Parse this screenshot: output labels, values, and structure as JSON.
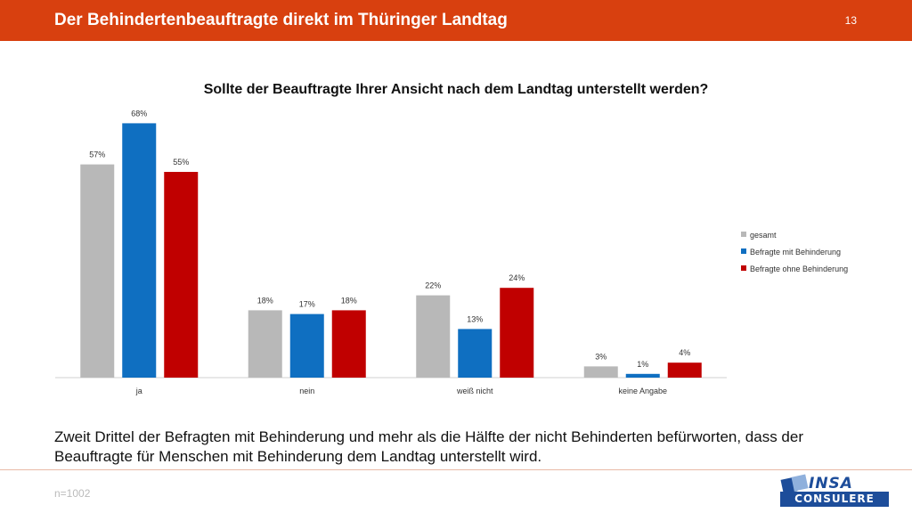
{
  "header": {
    "title": "Der Behindertenbeauftragte direkt im Thüringer Landtag",
    "slide_number": "13",
    "color": "#d8400f"
  },
  "chart_data": {
    "type": "bar",
    "title": "Sollte der Beauftragte Ihrer Ansicht nach dem Landtag unterstellt werden?",
    "categories": [
      "ja",
      "nein",
      "weiß nicht",
      "keine Angabe"
    ],
    "series": [
      {
        "name": "gesamt",
        "values": [
          57,
          18,
          22,
          3
        ],
        "labels": [
          "57%",
          "18%",
          "22%",
          "3%"
        ],
        "color": "#b8b8b8"
      },
      {
        "name": "Befragte mit Behinderung",
        "values": [
          68,
          17,
          13,
          1
        ],
        "labels": [
          "68%",
          "17%",
          "13%",
          "1%"
        ],
        "color": "#0f6fc1"
      },
      {
        "name": "Befragte ohne Behinderung",
        "values": [
          55,
          18,
          24,
          4
        ],
        "labels": [
          "55%",
          "18%",
          "24%",
          "4%"
        ],
        "color": "#c00000"
      }
    ],
    "ylim": [
      0,
      70
    ],
    "grid": false,
    "legend": "right"
  },
  "conclusion": {
    "line1": "Zweit Drittel der Befragten mit Behinderung und mehr als die Hälfte der nicht Behinderten befürworten, dass der",
    "line2": "Beauftragte für Menschen mit Behinderung dem Landtag unterstellt wird."
  },
  "footer": {
    "sample_size": "n=1002"
  },
  "logo": {
    "word1": "INSA",
    "word2": "CONSULERE",
    "color": "#1d4d9a"
  }
}
